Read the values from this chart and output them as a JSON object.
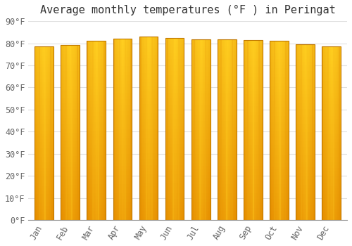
{
  "title": "Average monthly temperatures (°F ) in Peringat",
  "months": [
    "Jan",
    "Feb",
    "Mar",
    "Apr",
    "May",
    "Jun",
    "Jul",
    "Aug",
    "Sep",
    "Oct",
    "Nov",
    "Dec"
  ],
  "values": [
    78.5,
    79.2,
    81.0,
    82.0,
    83.0,
    82.5,
    81.7,
    81.7,
    81.3,
    81.0,
    79.5,
    78.6
  ],
  "ylim": [
    0,
    90
  ],
  "yticks": [
    0,
    10,
    20,
    30,
    40,
    50,
    60,
    70,
    80,
    90
  ],
  "bar_color_center": "#FFD040",
  "bar_color_edge": "#E89000",
  "bar_border_color": "#C07800",
  "background_color": "#FFFFFF",
  "plot_bg_color": "#FFFFFF",
  "grid_color": "#E0E0E0",
  "title_fontsize": 11,
  "tick_fontsize": 8.5,
  "font_family": "monospace"
}
